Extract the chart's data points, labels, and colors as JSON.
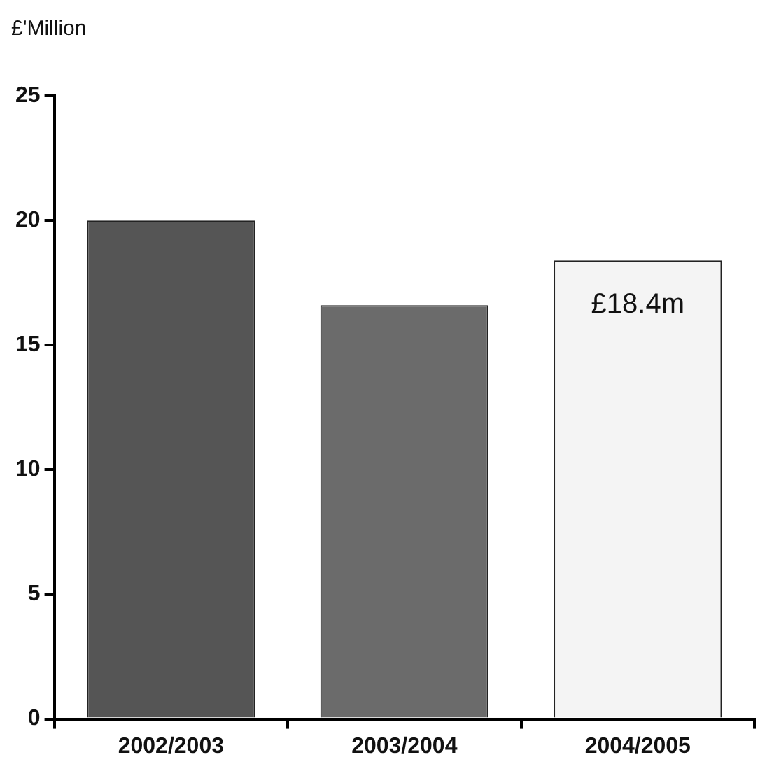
{
  "chart_data": {
    "type": "bar",
    "ylabel": "£'Million",
    "categories": [
      "2002/2003",
      "2003/2004",
      "2004/2005"
    ],
    "values": [
      20,
      16.6,
      18.4
    ],
    "colors": [
      "#555555",
      "#6b6b6b",
      "#f4f4f4"
    ],
    "value_labels": [
      null,
      null,
      "£18.4m"
    ],
    "ylim": [
      0,
      25
    ],
    "yticks": [
      0,
      5,
      10,
      15,
      20,
      25
    ],
    "grid": false,
    "legend": false
  }
}
